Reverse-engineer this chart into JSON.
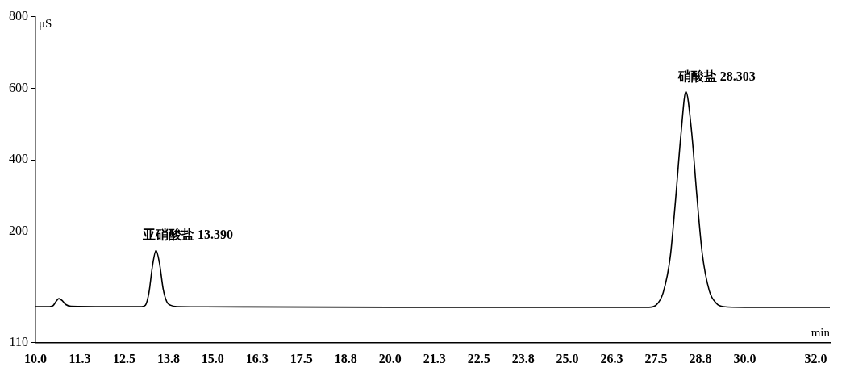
{
  "chart_data": {
    "type": "line",
    "xlabel": "min",
    "ylabel": "μS",
    "color": "#000000",
    "grid": false,
    "legend": false,
    "marker": "none",
    "x": [
      10.0,
      10.4,
      10.5,
      10.6,
      10.66,
      10.75,
      10.85,
      11.0,
      12.0,
      13.0,
      13.1,
      13.2,
      13.3,
      13.4,
      13.5,
      13.6,
      13.7,
      13.8,
      14.0,
      16.0,
      20.0,
      25.0,
      27.3,
      27.5,
      27.7,
      27.9,
      28.05,
      28.2,
      28.34,
      28.5,
      28.65,
      28.8,
      29.0,
      29.2,
      29.4,
      30.0,
      32.4
    ],
    "values": [
      -9,
      -9,
      -6,
      8,
      13,
      8,
      -3,
      -8,
      -9,
      -9,
      -5,
      30,
      105,
      148,
      110,
      40,
      5,
      -5,
      -9,
      -10,
      -11,
      -11,
      -11,
      -5,
      30,
      130,
      290,
      470,
      591,
      480,
      300,
      140,
      35,
      0,
      -9,
      -11,
      -11
    ],
    "xlim": [
      10.0,
      32.4
    ],
    "xticks": [
      {
        "value": 10.0,
        "label": "10.0"
      },
      {
        "value": 11.25,
        "label": "11.3"
      },
      12.5,
      {
        "value": 13.75,
        "label": "13.8"
      },
      {
        "value": 15.0,
        "label": "15.0"
      },
      {
        "value": 16.25,
        "label": "16.3"
      },
      17.5,
      {
        "value": 18.75,
        "label": "18.8"
      },
      {
        "value": 20.0,
        "label": "20.0"
      },
      {
        "value": 21.25,
        "label": "21.3"
      },
      22.5,
      {
        "value": 23.75,
        "label": "23.8"
      },
      {
        "value": 25.0,
        "label": "25.0"
      },
      {
        "value": 26.25,
        "label": "26.3"
      },
      27.5,
      {
        "value": 28.75,
        "label": "28.8"
      },
      {
        "value": 30.0,
        "label": "30.0"
      },
      {
        "value": 32.0,
        "label": "32.0"
      }
    ],
    "ylim": [
      -110,
      800
    ],
    "yticks": [
      {
        "value": -110,
        "label": "110"
      },
      200,
      400,
      600,
      800
    ],
    "annotations": [
      {
        "text": "亚硝酸盐 13.390",
        "x": 13.39,
        "y": 148
      },
      {
        "text": "硝酸盐 28.303",
        "x": 28.303,
        "y": 591
      }
    ]
  }
}
